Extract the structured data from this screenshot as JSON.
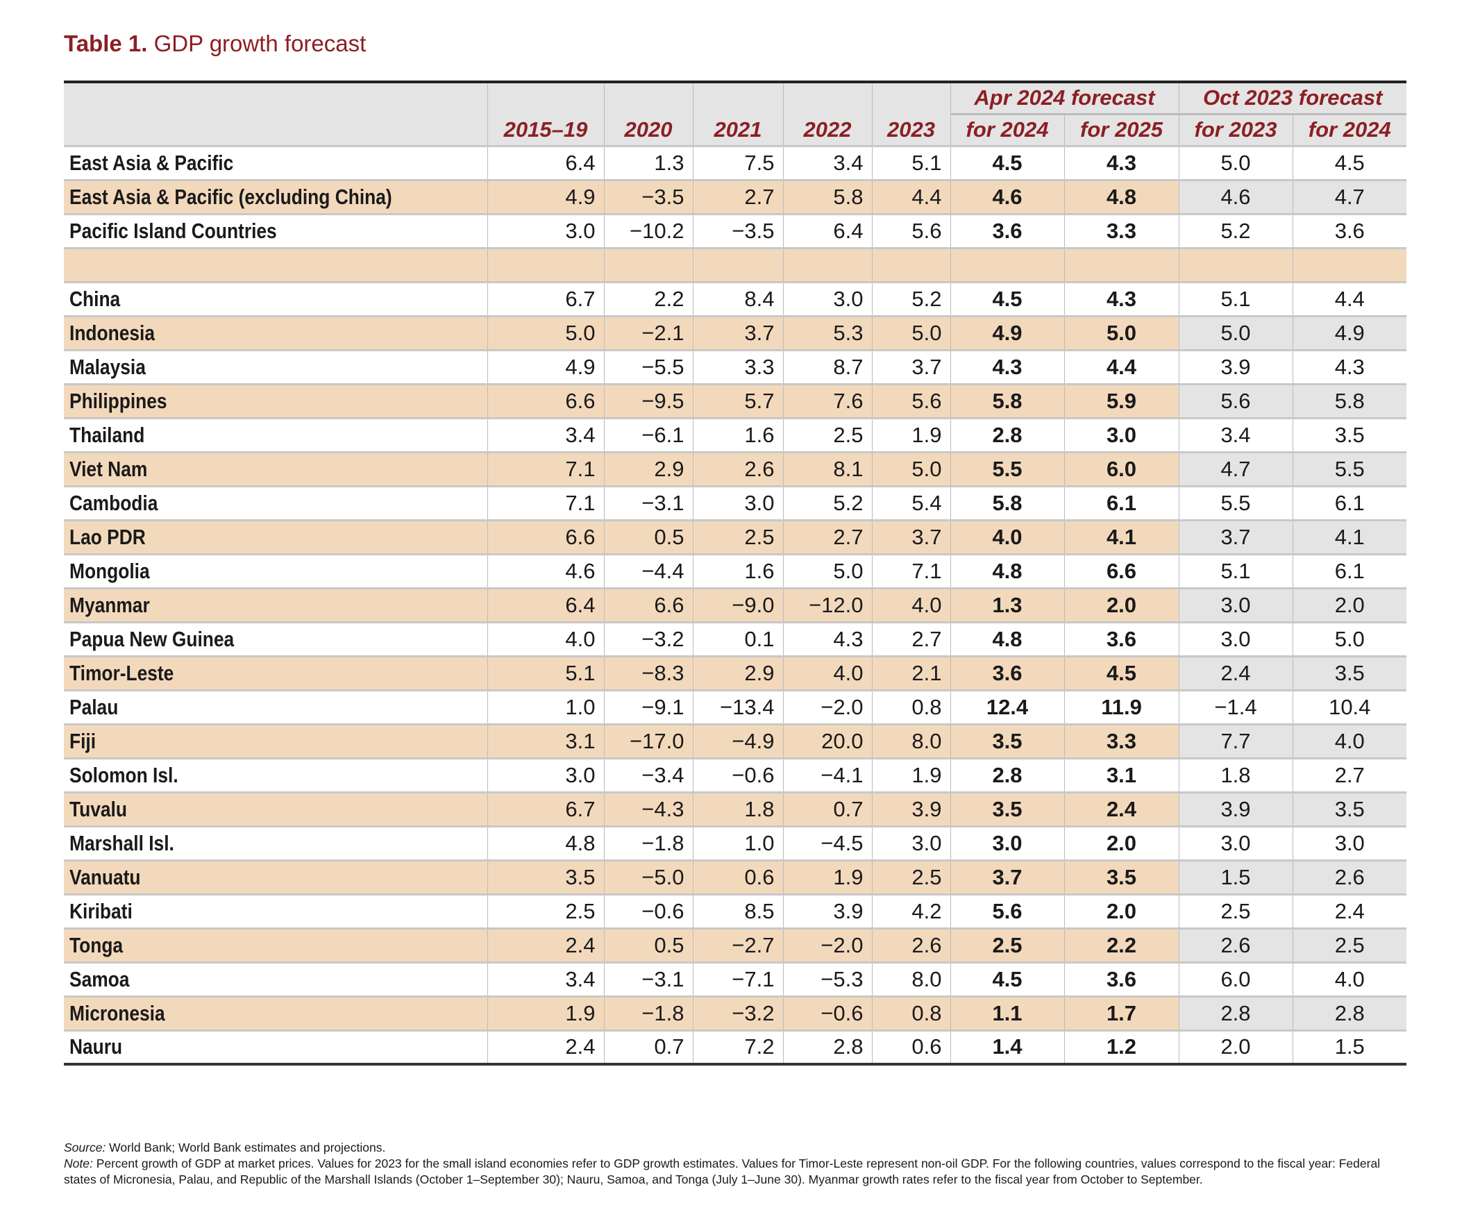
{
  "title": {
    "label": "Table 1.",
    "text": "GDP growth forecast"
  },
  "colors": {
    "title": "#8b1f24",
    "shade": "#f3d9bc",
    "header": "#e4e4e4"
  },
  "header": {
    "groups": [
      "Apr 2024 forecast",
      "Oct 2023 forecast"
    ],
    "columns": [
      "2015–19",
      "2020",
      "2021",
      "2022",
      "2023",
      "for 2024",
      "for 2025",
      "for 2023",
      "for 2024"
    ]
  },
  "rows": [
    {
      "name": "East Asia & Pacific",
      "values": [
        "6.4",
        "1.3",
        "7.5",
        "3.4",
        "5.1",
        "4.5",
        "4.3",
        "5.0",
        "4.5"
      ]
    },
    {
      "name": "East Asia & Pacific (excluding China)",
      "values": [
        "4.9",
        "−3.5",
        "2.7",
        "5.8",
        "4.4",
        "4.6",
        "4.8",
        "4.6",
        "4.7"
      ]
    },
    {
      "name": "Pacific Island Countries",
      "values": [
        "3.0",
        "−10.2",
        "−3.5",
        "6.4",
        "5.6",
        "3.6",
        "3.3",
        "5.2",
        "3.6"
      ]
    },
    {
      "name": "",
      "values": [
        "",
        "",
        "",
        "",
        "",
        "",
        "",
        "",
        ""
      ]
    },
    {
      "name": "China",
      "values": [
        "6.7",
        "2.2",
        "8.4",
        "3.0",
        "5.2",
        "4.5",
        "4.3",
        "5.1",
        "4.4"
      ]
    },
    {
      "name": "Indonesia",
      "values": [
        "5.0",
        "−2.1",
        "3.7",
        "5.3",
        "5.0",
        "4.9",
        "5.0",
        "5.0",
        "4.9"
      ]
    },
    {
      "name": "Malaysia",
      "values": [
        "4.9",
        "−5.5",
        "3.3",
        "8.7",
        "3.7",
        "4.3",
        "4.4",
        "3.9",
        "4.3"
      ]
    },
    {
      "name": "Philippines",
      "values": [
        "6.6",
        "−9.5",
        "5.7",
        "7.6",
        "5.6",
        "5.8",
        "5.9",
        "5.6",
        "5.8"
      ]
    },
    {
      "name": "Thailand",
      "values": [
        "3.4",
        "−6.1",
        "1.6",
        "2.5",
        "1.9",
        "2.8",
        "3.0",
        "3.4",
        "3.5"
      ]
    },
    {
      "name": "Viet Nam",
      "values": [
        "7.1",
        "2.9",
        "2.6",
        "8.1",
        "5.0",
        "5.5",
        "6.0",
        "4.7",
        "5.5"
      ]
    },
    {
      "name": "Cambodia",
      "values": [
        "7.1",
        "−3.1",
        "3.0",
        "5.2",
        "5.4",
        "5.8",
        "6.1",
        "5.5",
        "6.1"
      ]
    },
    {
      "name": "Lao PDR",
      "values": [
        "6.6",
        "0.5",
        "2.5",
        "2.7",
        "3.7",
        "4.0",
        "4.1",
        "3.7",
        "4.1"
      ]
    },
    {
      "name": "Mongolia",
      "values": [
        "4.6",
        "−4.4",
        "1.6",
        "5.0",
        "7.1",
        "4.8",
        "6.6",
        "5.1",
        "6.1"
      ]
    },
    {
      "name": "Myanmar",
      "values": [
        "6.4",
        "6.6",
        "−9.0",
        "−12.0",
        "4.0",
        "1.3",
        "2.0",
        "3.0",
        "2.0"
      ]
    },
    {
      "name": "Papua New Guinea",
      "values": [
        "4.0",
        "−3.2",
        "0.1",
        "4.3",
        "2.7",
        "4.8",
        "3.6",
        "3.0",
        "5.0"
      ]
    },
    {
      "name": "Timor-Leste",
      "values": [
        "5.1",
        "−8.3",
        "2.9",
        "4.0",
        "2.1",
        "3.6",
        "4.5",
        "2.4",
        "3.5"
      ]
    },
    {
      "name": "Palau",
      "values": [
        "1.0",
        "−9.1",
        "−13.4",
        "−2.0",
        "0.8",
        "12.4",
        "11.9",
        "−1.4",
        "10.4"
      ]
    },
    {
      "name": "Fiji",
      "values": [
        "3.1",
        "−17.0",
        "−4.9",
        "20.0",
        "8.0",
        "3.5",
        "3.3",
        "7.7",
        "4.0"
      ]
    },
    {
      "name": "Solomon Isl.",
      "values": [
        "3.0",
        "−3.4",
        "−0.6",
        "−4.1",
        "1.9",
        "2.8",
        "3.1",
        "1.8",
        "2.7"
      ]
    },
    {
      "name": "Tuvalu",
      "values": [
        "6.7",
        "−4.3",
        "1.8",
        "0.7",
        "3.9",
        "3.5",
        "2.4",
        "3.9",
        "3.5"
      ]
    },
    {
      "name": "Marshall Isl.",
      "values": [
        "4.8",
        "−1.8",
        "1.0",
        "−4.5",
        "3.0",
        "3.0",
        "2.0",
        "3.0",
        "3.0"
      ]
    },
    {
      "name": "Vanuatu",
      "values": [
        "3.5",
        "−5.0",
        "0.6",
        "1.9",
        "2.5",
        "3.7",
        "3.5",
        "1.5",
        "2.6"
      ]
    },
    {
      "name": "Kiribati",
      "values": [
        "2.5",
        "−0.6",
        "8.5",
        "3.9",
        "4.2",
        "5.6",
        "2.0",
        "2.5",
        "2.4"
      ]
    },
    {
      "name": "Tonga",
      "values": [
        "2.4",
        "0.5",
        "−2.7",
        "−2.0",
        "2.6",
        "2.5",
        "2.2",
        "2.6",
        "2.5"
      ]
    },
    {
      "name": "Samoa",
      "values": [
        "3.4",
        "−3.1",
        "−7.1",
        "−5.3",
        "8.0",
        "4.5",
        "3.6",
        "6.0",
        "4.0"
      ]
    },
    {
      "name": "Micronesia",
      "values": [
        "1.9",
        "−1.8",
        "−3.2",
        "−0.6",
        "0.8",
        "1.1",
        "1.7",
        "2.8",
        "2.8"
      ]
    },
    {
      "name": "Nauru",
      "values": [
        "2.4",
        "0.7",
        "7.2",
        "2.8",
        "0.6",
        "1.4",
        "1.2",
        "2.0",
        "1.5"
      ]
    }
  ],
  "notes": {
    "source_label": "Source:",
    "source": " World Bank; World Bank estimates and projections.",
    "note_label": "Note:",
    "note": " Percent growth of GDP at market prices. Values for 2023 for the small island economies refer to GDP growth estimates. Values for Timor-Leste represent non-oil GDP. For the following countries, values correspond to the fiscal year: Federal states of Micronesia, Palau, and Republic of the Marshall Islands (October 1–September 30); Nauru, Samoa, and Tonga (July 1–June 30). Myanmar growth rates refer to the fiscal year from October to September."
  }
}
